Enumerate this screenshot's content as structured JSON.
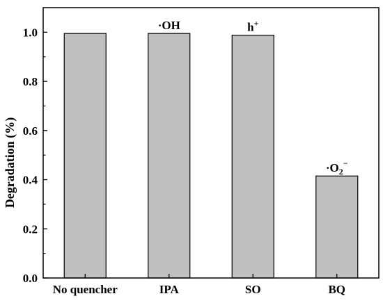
{
  "chart_data": {
    "type": "bar",
    "categories": [
      "No quencher",
      "IPA",
      "SO",
      "BQ"
    ],
    "values": [
      0.995,
      0.995,
      0.988,
      0.415
    ],
    "ylabel": "Degradation (%)",
    "ylim": [
      0.0,
      1.1
    ],
    "yticks": [
      "0.0",
      "0.2",
      "0.4",
      "0.6",
      "0.8",
      "1.0"
    ],
    "annotations": [
      {
        "category": "IPA",
        "base": "·OH",
        "sup": "",
        "sub": ""
      },
      {
        "category": "SO",
        "base": "h",
        "sup": "+",
        "sub": ""
      },
      {
        "category": "BQ",
        "base": "·O",
        "sub": "2",
        "sup": "−"
      }
    ],
    "bar_color": "#c0c0c0",
    "grid": false
  }
}
